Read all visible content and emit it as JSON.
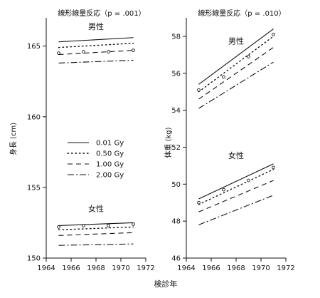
{
  "chart_data": [
    {
      "type": "line",
      "title": "線形線量反応（p = .001）",
      "ylabel": "身長 (cm)",
      "xlabel": "",
      "xlim": [
        1964,
        1972
      ],
      "ylim": [
        150,
        167
      ],
      "xticks": [
        1964,
        1966,
        1968,
        1970,
        1972
      ],
      "yticks": [
        150,
        155,
        160,
        165
      ],
      "grid": false,
      "annotations": [
        "男性",
        "女性"
      ],
      "legend": {
        "placement": "center",
        "entries": [
          {
            "label": "0.01 Gy",
            "style": "solid"
          },
          {
            "label": "0.50 Gy",
            "style": "dotted"
          },
          {
            "label": "1.00 Gy",
            "style": "dashed"
          },
          {
            "label": "2.00 Gy",
            "style": "dashdot"
          }
        ]
      },
      "groups": [
        {
          "label": "男性",
          "series": [
            {
              "name": "0.01 Gy",
              "style": "solid",
              "x": [
                1965,
                1971
              ],
              "y": [
                165.3,
                165.6
              ]
            },
            {
              "name": "0.50 Gy",
              "style": "dotted",
              "x": [
                1965,
                1971
              ],
              "y": [
                164.9,
                165.2
              ]
            },
            {
              "name": "1.00 Gy",
              "style": "dashed",
              "x": [
                1965,
                1971
              ],
              "y": [
                164.4,
                164.7
              ]
            },
            {
              "name": "2.00 Gy",
              "style": "dashdot",
              "x": [
                1965,
                1971
              ],
              "y": [
                163.8,
                164.0
              ]
            }
          ],
          "observed": {
            "x": [
              1965,
              1967,
              1969,
              1971
            ],
            "y": [
              164.5,
              164.6,
              164.6,
              164.7
            ]
          }
        },
        {
          "label": "女性",
          "series": [
            {
              "name": "0.01 Gy",
              "style": "solid",
              "x": [
                1965,
                1971
              ],
              "y": [
                152.3,
                152.5
              ]
            },
            {
              "name": "0.50 Gy",
              "style": "dotted",
              "x": [
                1965,
                1971
              ],
              "y": [
                152.0,
                152.2
              ]
            },
            {
              "name": "1.00 Gy",
              "style": "dashed",
              "x": [
                1965,
                1971
              ],
              "y": [
                151.6,
                151.8
              ]
            },
            {
              "name": "2.00 Gy",
              "style": "dashdot",
              "x": [
                1965,
                1971
              ],
              "y": [
                150.9,
                151.0
              ]
            }
          ],
          "observed": {
            "x": [
              1965,
              1967,
              1969,
              1971
            ],
            "y": [
              152.2,
              152.3,
              152.3,
              152.4
            ]
          }
        }
      ]
    },
    {
      "type": "line",
      "title": "線形線量反応（p = .010）",
      "ylabel": "体重 (kg)",
      "xlabel": "",
      "xlim": [
        1964,
        1972
      ],
      "ylim": [
        46,
        59
      ],
      "xticks": [
        1964,
        1966,
        1968,
        1970,
        1972
      ],
      "yticks": [
        46,
        48,
        50,
        52,
        54,
        56,
        58
      ],
      "grid": false,
      "annotations": [
        "男性",
        "女性"
      ],
      "groups": [
        {
          "label": "男性",
          "series": [
            {
              "name": "0.01 Gy",
              "style": "solid",
              "x": [
                1965,
                1971
              ],
              "y": [
                55.4,
                58.4
              ]
            },
            {
              "name": "0.50 Gy",
              "style": "dotted",
              "x": [
                1965,
                1971
              ],
              "y": [
                55.0,
                58.0
              ]
            },
            {
              "name": "1.00 Gy",
              "style": "dashed",
              "x": [
                1965,
                1971
              ],
              "y": [
                54.6,
                57.4
              ]
            },
            {
              "name": "2.00 Gy",
              "style": "dashdot",
              "x": [
                1965,
                1971
              ],
              "y": [
                54.1,
                56.6
              ]
            }
          ],
          "observed": {
            "x": [
              1965,
              1967,
              1969,
              1971
            ],
            "y": [
              55.1,
              55.8,
              56.9,
              58.1
            ]
          }
        },
        {
          "label": "女性",
          "series": [
            {
              "name": "0.01 Gy",
              "style": "solid",
              "x": [
                1965,
                1971
              ],
              "y": [
                49.2,
                51.1
              ]
            },
            {
              "name": "0.50 Gy",
              "style": "dotted",
              "x": [
                1965,
                1971
              ],
              "y": [
                48.9,
                50.8
              ]
            },
            {
              "name": "1.00 Gy",
              "style": "dashed",
              "x": [
                1965,
                1971
              ],
              "y": [
                48.5,
                50.2
              ]
            },
            {
              "name": "2.00 Gy",
              "style": "dashdot",
              "x": [
                1965,
                1971
              ],
              "y": [
                47.8,
                49.4
              ]
            }
          ],
          "observed": {
            "x": [
              1965,
              1967,
              1969,
              1971
            ],
            "y": [
              49.0,
              49.7,
              50.2,
              50.9
            ]
          }
        }
      ]
    }
  ],
  "figure": {
    "shared_xlabel": "検診年",
    "line_color": "#111111",
    "marker_color": "#111111"
  }
}
